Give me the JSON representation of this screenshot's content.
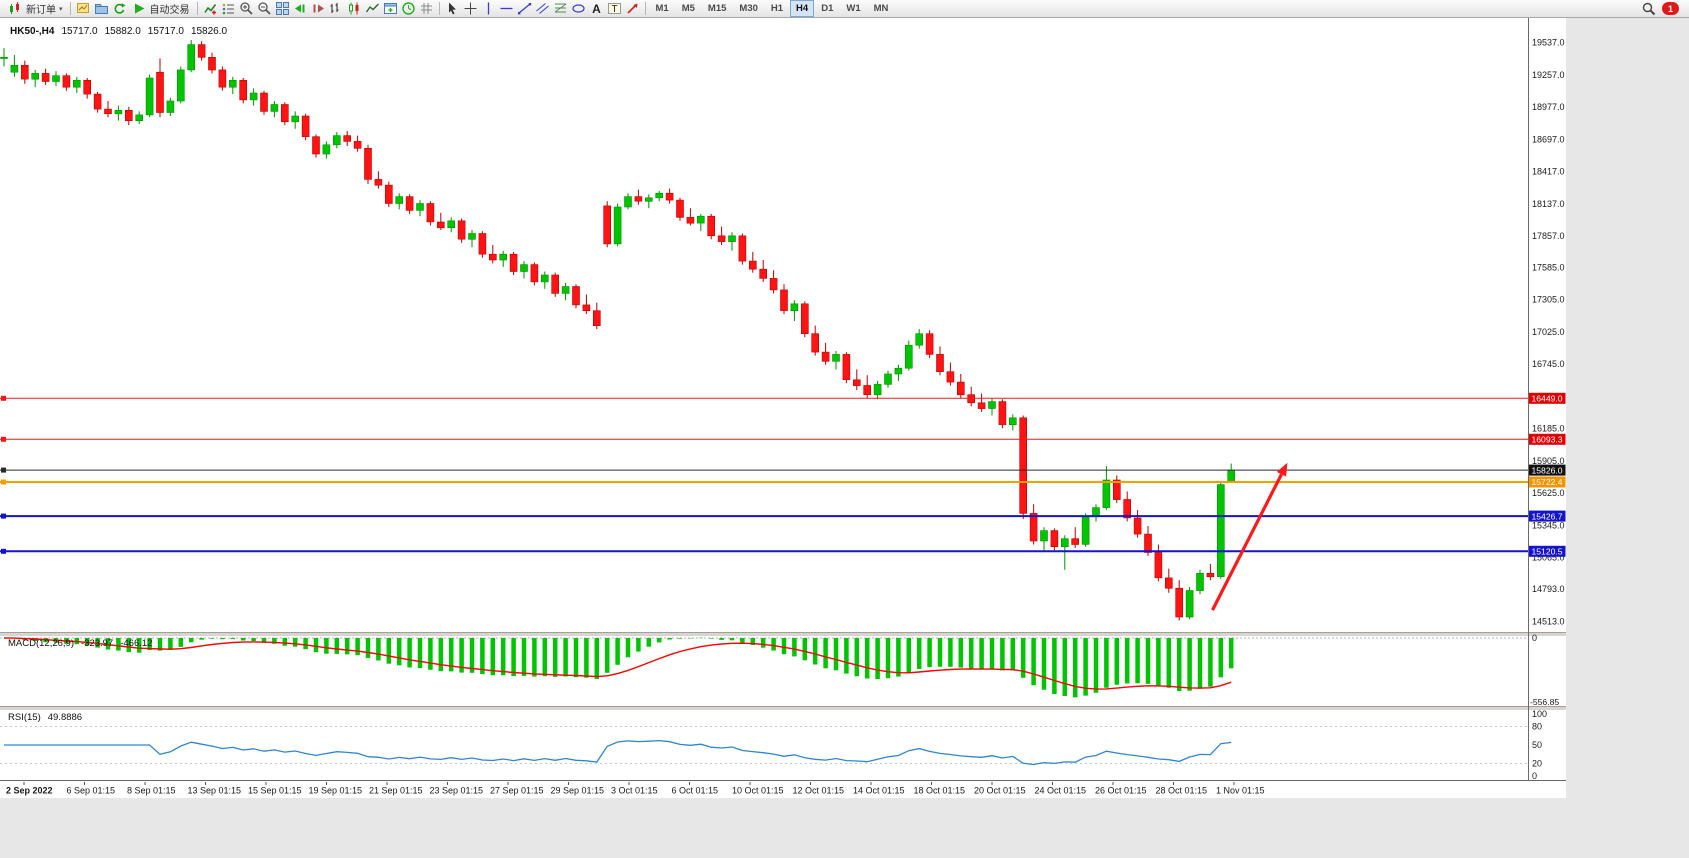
{
  "toolbar": {
    "new_order": "新订单",
    "autotrading": "自动交易",
    "left_icons": [
      "new-chart",
      "profiles",
      "refresh"
    ],
    "chart_icons": [
      "indicators",
      "objects-list",
      "zoom-in",
      "zoom-out",
      "tile-windows",
      "auto-scroll",
      "chart-shift",
      "bar-chart",
      "candlestick-chart",
      "line-chart",
      "new-window",
      "clock",
      "grid"
    ],
    "draw_icons": [
      "cursor",
      "crosshair",
      "vertical-line",
      "horizontal-line",
      "trendline",
      "channel",
      "fibonacci",
      "ellipse",
      "text",
      "text-label",
      "arrow-tool"
    ],
    "timeframes": [
      "M1",
      "M5",
      "M15",
      "M30",
      "H1",
      "H4",
      "D1",
      "W1",
      "MN"
    ],
    "active_timeframe": "H4",
    "notification_count": "1"
  },
  "chart": {
    "legend": "HK50-,H4",
    "ohlc": {
      "open": "15717.0",
      "high": "15882.0",
      "low": "15717.0",
      "close": "15826.0"
    },
    "axis_labels": [
      "19537.0",
      "19257.0",
      "18977.0",
      "18697.0",
      "18417.0",
      "18137.0",
      "17857.0",
      "17585.0",
      "17305.0",
      "17025.0",
      "16745.0",
      "16185.0",
      "15905.0",
      "15625.0",
      "15345.0",
      "15065.0",
      "14793.0",
      "14513.0"
    ],
    "price_lines": [
      {
        "price": 16449.0,
        "label": "16449.0",
        "color": "#ff1414",
        "tag": "#e00000",
        "width": 1
      },
      {
        "price": 16093.3,
        "label": "16093.3",
        "color": "#ff1414",
        "tag": "#e00000",
        "width": 1
      },
      {
        "price": 15826.0,
        "label": "15826.0",
        "color": "#2b2b2b",
        "tag": "#111111",
        "width": 1
      },
      {
        "price": 15722.4,
        "label": "15722.4",
        "color": "#ff9c00",
        "tag": "#f59300",
        "width": 2
      },
      {
        "price": 15426.7,
        "label": "15426.7",
        "color": "#1414cc",
        "tag": "#1414cc",
        "width": 2
      },
      {
        "price": 15120.5,
        "label": "15120.5",
        "color": "#1414cc",
        "tag": "#1414cc",
        "width": 2
      }
    ],
    "time_labels": [
      "2 Sep 2022",
      "6 Sep 01:15",
      "8 Sep 01:15",
      "13 Sep 01:15",
      "15 Sep 01:15",
      "19 Sep 01:15",
      "21 Sep 01:15",
      "23 Sep 01:15",
      "27 Sep 01:15",
      "29 Sep 01:15",
      "3 Oct 01:15",
      "6 Oct 01:15",
      "10 Oct 01:15",
      "12 Oct 01:15",
      "14 Oct 01:15",
      "18 Oct 01:15",
      "20 Oct 01:15",
      "24 Oct 01:15",
      "26 Oct 01:15",
      "28 Oct 01:15",
      "1 Nov 01:15"
    ],
    "colors": {
      "up": "#00c400",
      "up_edge": "#009200",
      "down": "#ff1414",
      "down_edge": "#bb0000",
      "macd_histogram": "#00c400",
      "macd_signal": "#ff0000",
      "rsi_line": "#2f86d2",
      "axis_text": "#1a1a1a",
      "background": "#ffffff"
    }
  },
  "chart_data": {
    "type": "candlestick",
    "symbol": "HK50-",
    "timeframe": "H4",
    "y_range": [
      14420,
      19751
    ],
    "candles": [
      [
        19400,
        19490,
        19330,
        19410
      ],
      [
        19280,
        19430,
        19240,
        19340
      ],
      [
        19340,
        19380,
        19180,
        19220
      ],
      [
        19220,
        19300,
        19150,
        19270
      ],
      [
        19270,
        19310,
        19170,
        19200
      ],
      [
        19200,
        19290,
        19160,
        19250
      ],
      [
        19250,
        19270,
        19120,
        19150
      ],
      [
        19150,
        19240,
        19100,
        19210
      ],
      [
        19210,
        19230,
        19050,
        19090
      ],
      [
        19090,
        19110,
        18930,
        18960
      ],
      [
        18960,
        19030,
        18890,
        18920
      ],
      [
        18920,
        18990,
        18860,
        18950
      ],
      [
        18950,
        18980,
        18820,
        18860
      ],
      [
        18860,
        18940,
        18830,
        18910
      ],
      [
        18910,
        19260,
        18890,
        19230
      ],
      [
        19280,
        19400,
        18890,
        18930
      ],
      [
        18930,
        19060,
        18900,
        19030
      ],
      [
        19030,
        19330,
        19010,
        19300
      ],
      [
        19300,
        19560,
        19280,
        19520
      ],
      [
        19520,
        19550,
        19380,
        19410
      ],
      [
        19410,
        19450,
        19270,
        19300
      ],
      [
        19300,
        19330,
        19120,
        19150
      ],
      [
        19150,
        19240,
        19090,
        19210
      ],
      [
        19210,
        19230,
        19010,
        19040
      ],
      [
        19040,
        19140,
        18990,
        19100
      ],
      [
        19100,
        19120,
        18910,
        18940
      ],
      [
        18940,
        19030,
        18890,
        19000
      ],
      [
        19000,
        19020,
        18820,
        18850
      ],
      [
        18850,
        18940,
        18790,
        18900
      ],
      [
        18900,
        18920,
        18690,
        18720
      ],
      [
        18720,
        18740,
        18540,
        18570
      ],
      [
        18570,
        18680,
        18530,
        18650
      ],
      [
        18650,
        18760,
        18620,
        18730
      ],
      [
        18730,
        18770,
        18640,
        18680
      ],
      [
        18680,
        18730,
        18590,
        18620
      ],
      [
        18620,
        18650,
        18310,
        18350
      ],
      [
        18350,
        18420,
        18270,
        18300
      ],
      [
        18300,
        18330,
        18110,
        18140
      ],
      [
        18140,
        18230,
        18090,
        18200
      ],
      [
        18200,
        18220,
        18050,
        18080
      ],
      [
        18080,
        18170,
        18030,
        18140
      ],
      [
        18140,
        18160,
        17950,
        17980
      ],
      [
        17980,
        18060,
        17910,
        17930
      ],
      [
        17930,
        18020,
        17890,
        17990
      ],
      [
        17990,
        18010,
        17800,
        17830
      ],
      [
        17830,
        17910,
        17760,
        17880
      ],
      [
        17880,
        17900,
        17670,
        17700
      ],
      [
        17700,
        17780,
        17620,
        17650
      ],
      [
        17650,
        17730,
        17590,
        17700
      ],
      [
        17700,
        17720,
        17520,
        17550
      ],
      [
        17550,
        17640,
        17490,
        17610
      ],
      [
        17610,
        17630,
        17430,
        17460
      ],
      [
        17460,
        17550,
        17400,
        17520
      ],
      [
        17520,
        17540,
        17330,
        17360
      ],
      [
        17360,
        17450,
        17300,
        17420
      ],
      [
        17420,
        17440,
        17230,
        17260
      ],
      [
        17260,
        17350,
        17180,
        17210
      ],
      [
        17210,
        17280,
        17050,
        17080
      ],
      [
        18120,
        18160,
        17760,
        17790
      ],
      [
        17790,
        18140,
        17770,
        18110
      ],
      [
        18110,
        18230,
        18090,
        18200
      ],
      [
        18200,
        18260,
        18130,
        18160
      ],
      [
        18160,
        18220,
        18100,
        18190
      ],
      [
        18190,
        18250,
        18160,
        18230
      ],
      [
        18230,
        18270,
        18140,
        18170
      ],
      [
        18170,
        18190,
        17990,
        18020
      ],
      [
        18020,
        18100,
        17950,
        17970
      ],
      [
        17970,
        18050,
        17900,
        18030
      ],
      [
        18030,
        18050,
        17830,
        17860
      ],
      [
        17860,
        17940,
        17780,
        17810
      ],
      [
        17810,
        17890,
        17730,
        17860
      ],
      [
        17860,
        17880,
        17610,
        17640
      ],
      [
        17640,
        17720,
        17540,
        17570
      ],
      [
        17570,
        17650,
        17460,
        17490
      ],
      [
        17490,
        17560,
        17360,
        17390
      ],
      [
        17390,
        17440,
        17180,
        17210
      ],
      [
        17210,
        17300,
        17120,
        17270
      ],
      [
        17270,
        17290,
        16980,
        17010
      ],
      [
        17010,
        17080,
        16820,
        16850
      ],
      [
        16850,
        16930,
        16740,
        16770
      ],
      [
        16770,
        16860,
        16700,
        16830
      ],
      [
        16830,
        16850,
        16580,
        16610
      ],
      [
        16610,
        16700,
        16520,
        16560
      ],
      [
        16560,
        16650,
        16450,
        16480
      ],
      [
        16480,
        16600,
        16440,
        16570
      ],
      [
        16570,
        16690,
        16540,
        16660
      ],
      [
        16660,
        16740,
        16600,
        16710
      ],
      [
        16710,
        16950,
        16690,
        16910
      ],
      [
        16910,
        17050,
        16880,
        17010
      ],
      [
        17010,
        17040,
        16800,
        16830
      ],
      [
        16830,
        16900,
        16650,
        16680
      ],
      [
        16680,
        16760,
        16560,
        16590
      ],
      [
        16590,
        16660,
        16450,
        16480
      ],
      [
        16480,
        16550,
        16380,
        16410
      ],
      [
        16410,
        16490,
        16330,
        16360
      ],
      [
        16360,
        16450,
        16300,
        16420
      ],
      [
        16420,
        16440,
        16190,
        16220
      ],
      [
        16220,
        16310,
        16170,
        16280
      ],
      [
        16280,
        16300,
        15400,
        15450
      ],
      [
        15450,
        15530,
        15180,
        15210
      ],
      [
        15210,
        15330,
        15120,
        15300
      ],
      [
        15300,
        15320,
        15130,
        15160
      ],
      [
        15160,
        15260,
        14960,
        15230
      ],
      [
        15230,
        15330,
        15150,
        15180
      ],
      [
        15180,
        15450,
        15160,
        15420
      ],
      [
        15420,
        15530,
        15380,
        15500
      ],
      [
        15500,
        15860,
        15480,
        15740
      ],
      [
        15740,
        15780,
        15540,
        15570
      ],
      [
        15570,
        15640,
        15380,
        15410
      ],
      [
        15410,
        15480,
        15240,
        15270
      ],
      [
        15270,
        15340,
        15080,
        15110
      ],
      [
        15110,
        15180,
        14860,
        14890
      ],
      [
        14890,
        14970,
        14760,
        14800
      ],
      [
        14800,
        14870,
        14520,
        14550
      ],
      [
        14550,
        14810,
        14530,
        14780
      ],
      [
        14780,
        14960,
        14750,
        14930
      ],
      [
        14930,
        15010,
        14870,
        14900
      ],
      [
        14900,
        15730,
        14880,
        15700
      ],
      [
        15717,
        15882,
        15717,
        15826
      ]
    ],
    "indicators": {
      "macd": {
        "name": "MACD",
        "label": "MACD(12,26,9)",
        "fast": 12,
        "slow": 26,
        "signal": 9,
        "main_value": "-323.97",
        "signal_value": "-466.12",
        "zero_label": "0",
        "min_label": "-556.85",
        "min_value": -556.85
      },
      "rsi": {
        "name": "RSI",
        "label": "RSI(15)",
        "period": 15,
        "value": "49.8886",
        "scale_labels": [
          "100",
          "80",
          "50",
          "20",
          "0"
        ],
        "levels": [
          80,
          20
        ]
      }
    },
    "annotations": [
      {
        "type": "trend-arrow",
        "from": {
          "index": 116.2,
          "price": 14610
        },
        "to": {
          "index": 123.4,
          "price": 15890
        },
        "color": "#ff1a1a"
      }
    ]
  }
}
